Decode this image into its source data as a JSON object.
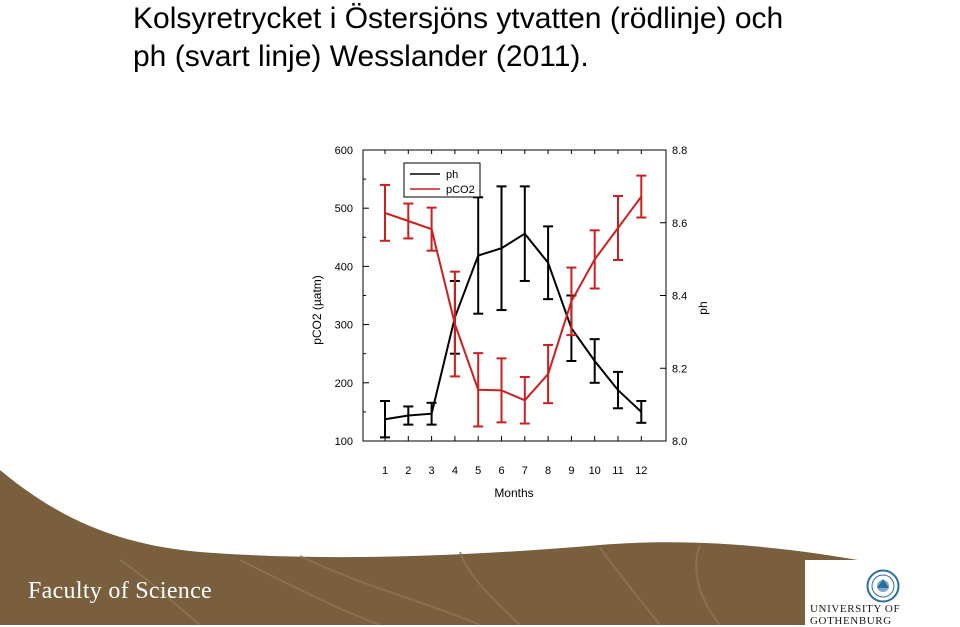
{
  "slide": {
    "title_line1": "Kolsyretrycket i Östersjöns ytvatten (rödlinje) och",
    "title_line2": "ph (svart linje) Wesslander (2011).",
    "footer_faculty": "Faculty of Science",
    "footer_university": "UNIVERSITY OF GOTHENBURG",
    "brand_color": "#7a5f3e"
  },
  "chart_data": {
    "type": "line",
    "xlabel": "Months",
    "ylabel_left": "pCO2 (µatm)",
    "ylabel_right": "ph",
    "categories": [
      1,
      2,
      3,
      4,
      5,
      6,
      7,
      8,
      9,
      10,
      11,
      12
    ],
    "ylim_left": [
      100,
      600
    ],
    "ylim_right": [
      8.0,
      8.8
    ],
    "left_ticks": [
      100,
      200,
      300,
      400,
      500,
      600
    ],
    "right_ticks": [
      "8.0",
      "8.2",
      "8.4",
      "8.6",
      "8.8"
    ],
    "legend": {
      "placement": "top-center",
      "entries": [
        "ph",
        "pCO2"
      ]
    },
    "series": [
      {
        "name": "ph",
        "axis": "right",
        "color": "#000000",
        "values": [
          8.06,
          8.07,
          8.075,
          8.34,
          8.51,
          8.53,
          8.57,
          8.49,
          8.31,
          8.22,
          8.14,
          8.08
        ],
        "error": [
          0.05,
          0.025,
          0.03,
          0.1,
          0.16,
          0.17,
          0.13,
          0.1,
          0.09,
          0.06,
          0.05,
          0.03
        ]
      },
      {
        "name": "pCO2",
        "axis": "left",
        "color": "#cc1f1f",
        "values": [
          492,
          478,
          464,
          301,
          188,
          187,
          170,
          215,
          340,
          412,
          466,
          520
        ],
        "error": [
          48,
          30,
          37,
          90,
          63,
          55,
          40,
          50,
          58,
          50,
          55,
          36
        ]
      }
    ]
  }
}
